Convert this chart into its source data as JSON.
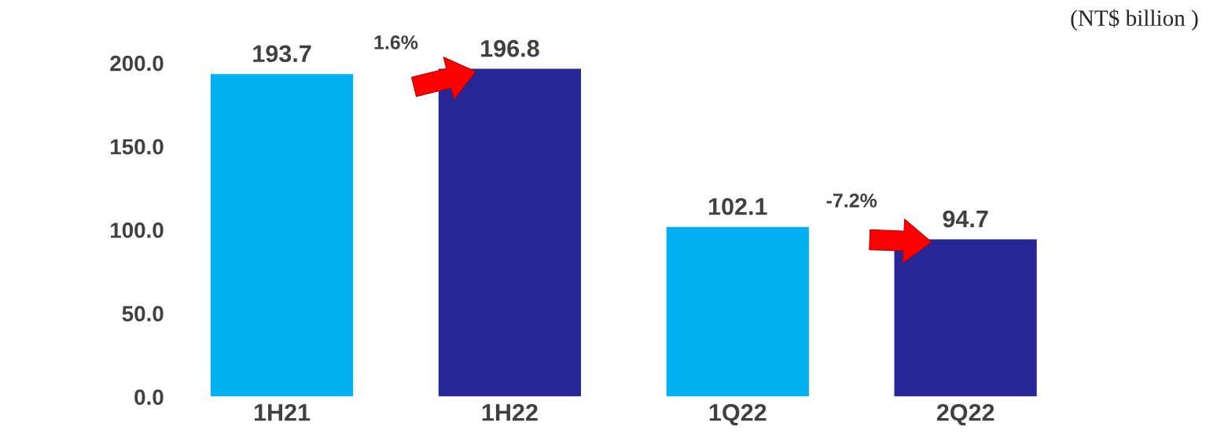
{
  "chart_data": {
    "type": "bar",
    "categories": [
      "1H21",
      "1H22",
      "1Q22",
      "2Q22"
    ],
    "values": [
      193.7,
      196.8,
      102.1,
      94.7
    ],
    "colors": [
      "#00b0f0",
      "#262696",
      "#00b0f0",
      "#262696"
    ],
    "ylim": [
      0,
      200
    ],
    "yticks": [
      {
        "value": 0,
        "label": "0.0"
      },
      {
        "value": 50,
        "label": "50.0"
      },
      {
        "value": 100,
        "label": "100.0"
      },
      {
        "value": 150,
        "label": "150.0"
      },
      {
        "value": 200,
        "label": "200.0"
      }
    ],
    "data_labels": true,
    "grid": false,
    "annotations": [
      "(NT$ billion )",
      "1.6%",
      "-7.2%"
    ]
  }
}
